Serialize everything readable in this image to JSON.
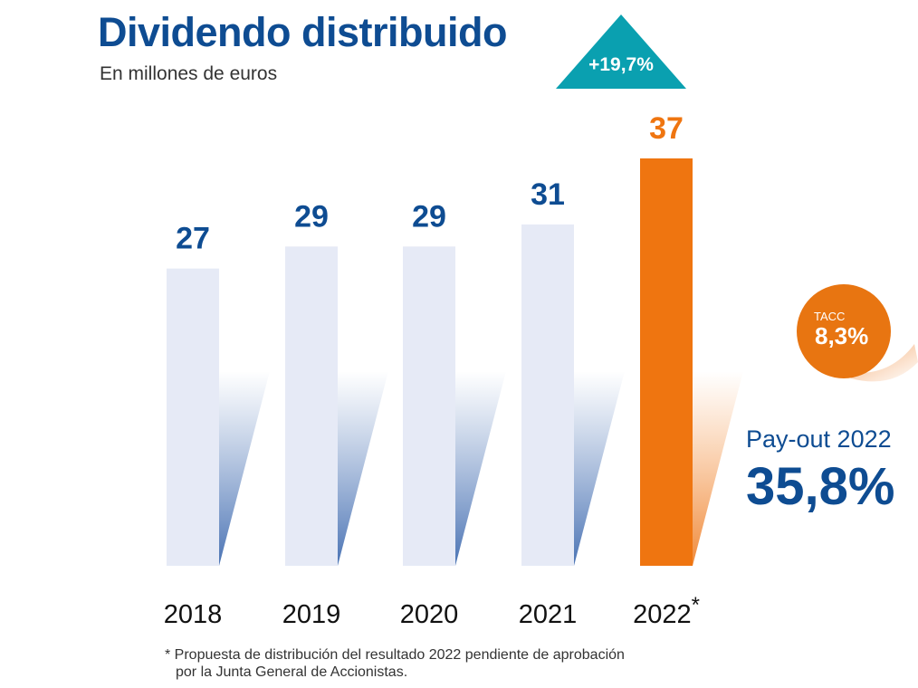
{
  "header": {
    "title": "Dividendo distribuido",
    "subtitle": "En millones de euros"
  },
  "growth_badge": {
    "label": "+19,7%",
    "color": "#0aa0b0"
  },
  "tacc": {
    "label": "TACC",
    "value": "8,3%",
    "color": "#e87511"
  },
  "payout": {
    "label": "Pay-out 2022",
    "value": "35,8%"
  },
  "footnote": {
    "line1": "* Propuesta de distribución del resultado 2022 pendiente de aprobación",
    "line2": "por la Junta General de Accionistas."
  },
  "colors": {
    "primary_blue": "#0e4c92",
    "bar_light": "#e6eaf6",
    "highlight_orange": "#ef7510"
  },
  "chart_data": {
    "type": "bar",
    "categories": [
      "2018",
      "2019",
      "2020",
      "2021",
      "2022*"
    ],
    "values": [
      27,
      29,
      29,
      31,
      37
    ],
    "value_labels": [
      "27",
      "29",
      "29",
      "31",
      "37"
    ],
    "highlight_index": 4,
    "ylim": [
      0,
      37
    ],
    "title": "Dividendo distribuido",
    "xlabel": "",
    "ylabel": ""
  }
}
